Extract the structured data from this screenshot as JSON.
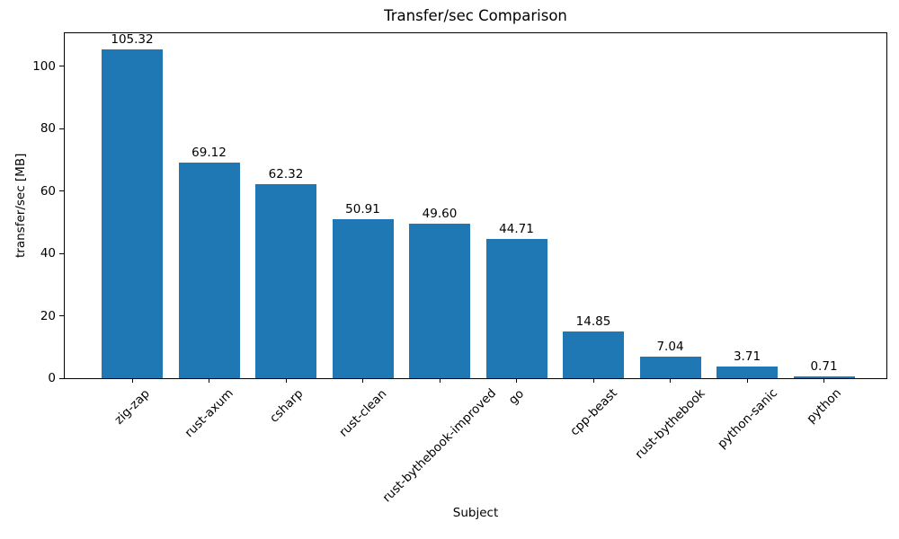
{
  "chart_data": {
    "type": "bar",
    "title": "Transfer/sec Comparison",
    "xlabel": "Subject",
    "ylabel": "transfer/sec [MB]",
    "categories": [
      "zig-zap",
      "rust-axum",
      "csharp",
      "rust-clean",
      "rust-bythebook-improved",
      "go",
      "cpp-beast",
      "rust-bythebook",
      "python-sanic",
      "python"
    ],
    "values": [
      105.32,
      69.12,
      62.32,
      50.91,
      49.6,
      44.71,
      14.85,
      7.04,
      3.71,
      0.71
    ],
    "value_labels": [
      "105.32",
      "69.12",
      "62.32",
      "50.91",
      "49.60",
      "44.71",
      "14.85",
      "7.04",
      "3.71",
      "0.71"
    ],
    "bar_color": "#1f77b4",
    "text_color": "#000000",
    "background_color": "#ffffff",
    "ylim": [
      0,
      110.6
    ],
    "yticks": [
      0,
      20,
      40,
      60,
      80,
      100
    ],
    "grid": false,
    "legend_position": "none",
    "xtick_rotation_deg": 45
  }
}
